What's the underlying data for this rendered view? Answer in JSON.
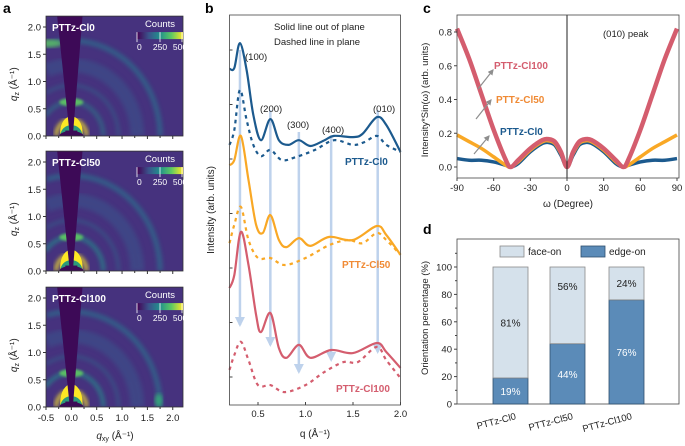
{
  "panel_labels": {
    "a": "a",
    "b": "b",
    "c": "c",
    "d": "d"
  },
  "colors": {
    "cl0": "#1c5a8e",
    "cl50": "#f9a825",
    "cl50_label": "#f08a34",
    "cl100": "#d45d6e",
    "arrow": "#a9c4e6",
    "face_on": "#d5e1eb",
    "edge_on": "#5b8bb8",
    "heatmap_bg": "#46327e",
    "heatmap_wedge": "#3d0a57"
  },
  "chart_data": [
    {
      "panel": "a",
      "type": "heatmap",
      "samples": [
        "PTTz-Cl0",
        "PTTz-Cl50",
        "PTTz-Cl100"
      ],
      "xlabel": "q",
      "xlabel_sub": "xy",
      "ylabel": "q",
      "ylabel_sub": "z",
      "unit": "(Å⁻¹)",
      "xlim": [
        -0.5,
        2.2
      ],
      "ylim": [
        0,
        2.2
      ],
      "xticks": [
        "-0.5",
        "0.0",
        "0.5",
        "1.0",
        "1.5",
        "2.0"
      ],
      "yticks": [
        "0.0",
        "0.5",
        "1.0",
        "1.5",
        "2.0"
      ],
      "colorbar": {
        "title": "Counts",
        "ticks": [
          "0",
          "250",
          "500"
        ],
        "range": [
          0,
          500
        ],
        "colormap": "viridis"
      }
    },
    {
      "panel": "b",
      "type": "line",
      "xlabel": "q (Å⁻¹)",
      "ylabel": "Intensity (arb. units)",
      "xlim": [
        0.2,
        2.0
      ],
      "xticks": [
        "0.5",
        "1.0",
        "1.5",
        "2.0"
      ],
      "ylim": [
        0,
        100
      ],
      "note_lines": [
        "Solid line out of plane",
        "Dashed line in plane"
      ],
      "peak_labels": [
        {
          "text": "(100)",
          "q": 0.31
        },
        {
          "text": "(200)",
          "q": 0.63
        },
        {
          "text": "(300)",
          "q": 0.93
        },
        {
          "text": "(400)",
          "q": 1.27
        },
        {
          "text": "(010)",
          "q": 1.76
        }
      ],
      "series": [
        {
          "name": "PTTz-Cl0",
          "style": "solid",
          "color_key": "cl0",
          "x": [
            0.2,
            0.25,
            0.31,
            0.38,
            0.45,
            0.53,
            0.63,
            0.72,
            0.82,
            0.93,
            1.05,
            1.2,
            1.3,
            1.5,
            1.6,
            1.75,
            1.85,
            2.0
          ],
          "y": [
            86.2,
            86.4,
            92.8,
            85.9,
            74.4,
            67.9,
            73.3,
            67.9,
            66.7,
            67.9,
            66.4,
            67.9,
            69.0,
            68.7,
            69.5,
            73.8,
            71.8,
            64.9
          ]
        },
        {
          "style": "dashed",
          "color_key": "cl0",
          "x": [
            0.2,
            0.25,
            0.31,
            0.38,
            0.45,
            0.53,
            0.63,
            0.75,
            0.9,
            1.1,
            1.3,
            1.5,
            1.62,
            1.75,
            1.85,
            2.0
          ],
          "y": [
            66.7,
            70.5,
            80.8,
            73.1,
            66.7,
            63.8,
            65.4,
            62.8,
            63.6,
            65.4,
            67.9,
            66.7,
            67.4,
            69.0,
            66.7,
            64.9
          ]
        },
        {
          "name": "PTTz-Cl50",
          "style": "solid",
          "color_key": "cl50",
          "x": [
            0.2,
            0.25,
            0.32,
            0.4,
            0.48,
            0.55,
            0.63,
            0.72,
            0.8,
            0.93,
            1.05,
            1.25,
            1.5,
            1.75,
            1.85,
            2.0
          ],
          "y": [
            61.5,
            62.8,
            69.0,
            57.7,
            46.2,
            44.1,
            48.7,
            42.3,
            40.5,
            42.8,
            40.8,
            43.1,
            42.3,
            45.9,
            43.6,
            38.5
          ]
        },
        {
          "style": "dashed",
          "color_key": "cl50",
          "x": [
            0.2,
            0.25,
            0.32,
            0.4,
            0.5,
            0.63,
            0.78,
            1.0,
            1.25,
            1.45,
            1.6,
            1.75,
            1.85,
            2.0
          ],
          "y": [
            41.5,
            46.2,
            50.8,
            42.3,
            37.7,
            37.7,
            35.9,
            37.7,
            41.0,
            42.3,
            41.5,
            44.1,
            42.3,
            38.5
          ]
        },
        {
          "name": "PTTz-Cl100",
          "style": "solid",
          "color_key": "cl100",
          "x": [
            0.2,
            0.25,
            0.32,
            0.4,
            0.48,
            0.53,
            0.63,
            0.72,
            0.8,
            0.93,
            1.05,
            1.27,
            1.5,
            1.75,
            1.85,
            2.0
          ],
          "y": [
            30.0,
            33.3,
            44.4,
            35.9,
            23.1,
            18.7,
            23.6,
            14.6,
            12.1,
            15.4,
            12.1,
            14.1,
            13.3,
            15.9,
            13.6,
            9.5
          ]
        },
        {
          "style": "dashed",
          "color_key": "cl100",
          "x": [
            0.2,
            0.25,
            0.32,
            0.4,
            0.5,
            0.63,
            0.78,
            1.0,
            1.2,
            1.4,
            1.55,
            1.75,
            1.85,
            2.0
          ],
          "y": [
            9.0,
            12.8,
            16.2,
            11.5,
            5.1,
            5.1,
            3.3,
            5.1,
            8.5,
            11.0,
            11.0,
            14.9,
            11.5,
            6.9
          ]
        }
      ]
    },
    {
      "panel": "c",
      "type": "line",
      "xlabel": "ω (Degree)",
      "ylabel": "Intensity*Sin(ω) (arb. units)",
      "xlim": [
        -90,
        90
      ],
      "ylim": [
        -0.06,
        0.88
      ],
      "xticks": [
        "-90",
        "-60",
        "-30",
        "0",
        "30",
        "60",
        "90"
      ],
      "yticks": [
        "0.0",
        "0.2",
        "0.4",
        "0.6",
        "0.8"
      ],
      "annotation": "(010) peak",
      "x": [
        -90,
        -80,
        -70,
        -60,
        -50,
        -46,
        -40,
        -30,
        -20,
        -15,
        -10,
        -5,
        0,
        5,
        10,
        15,
        20,
        30,
        40,
        46,
        50,
        60,
        70,
        80,
        90
      ],
      "series": [
        {
          "name": "PTTz-Cl0",
          "color_key": "cl0",
          "y": [
            0.05,
            0.04,
            0.04,
            0.03,
            0.01,
            0.0,
            0.02,
            0.09,
            0.14,
            0.145,
            0.13,
            0.07,
            0.0,
            0.07,
            0.13,
            0.145,
            0.14,
            0.09,
            0.02,
            0.0,
            0.01,
            0.03,
            0.04,
            0.04,
            0.05
          ]
        },
        {
          "name": "PTTz-Cl50",
          "color_key": "cl50",
          "y": [
            0.19,
            0.15,
            0.11,
            0.06,
            0.01,
            0.0,
            0.03,
            0.1,
            0.15,
            0.155,
            0.14,
            0.08,
            0.0,
            0.08,
            0.14,
            0.155,
            0.15,
            0.1,
            0.03,
            0.0,
            0.01,
            0.06,
            0.11,
            0.15,
            0.19
          ]
        },
        {
          "name": "PTTz-Cl100",
          "color_key": "cl100",
          "y": [
            0.82,
            0.64,
            0.43,
            0.22,
            0.04,
            0.0,
            0.04,
            0.11,
            0.16,
            0.165,
            0.15,
            0.09,
            0.0,
            0.09,
            0.15,
            0.165,
            0.16,
            0.11,
            0.04,
            0.0,
            0.04,
            0.22,
            0.43,
            0.64,
            0.82
          ]
        }
      ]
    },
    {
      "panel": "d",
      "type": "bar",
      "stacked": true,
      "ylabel": "Orientation percentage (%)",
      "ylim": [
        0,
        120
      ],
      "yticks": [
        "0",
        "20",
        "40",
        "60",
        "80",
        "100"
      ],
      "categories": [
        "PTTz-Cl0",
        "PTTz-Cl50",
        "PTTz-Cl100"
      ],
      "legend": "top",
      "series": [
        {
          "name": "edge-on",
          "color_key": "edge_on",
          "values": [
            19,
            44,
            76
          ],
          "labels": [
            "19%",
            "44%",
            "76%"
          ]
        },
        {
          "name": "face-on",
          "color_key": "face_on",
          "values": [
            81,
            56,
            24
          ],
          "labels": [
            "81%",
            "56%",
            "24%"
          ]
        }
      ]
    }
  ]
}
